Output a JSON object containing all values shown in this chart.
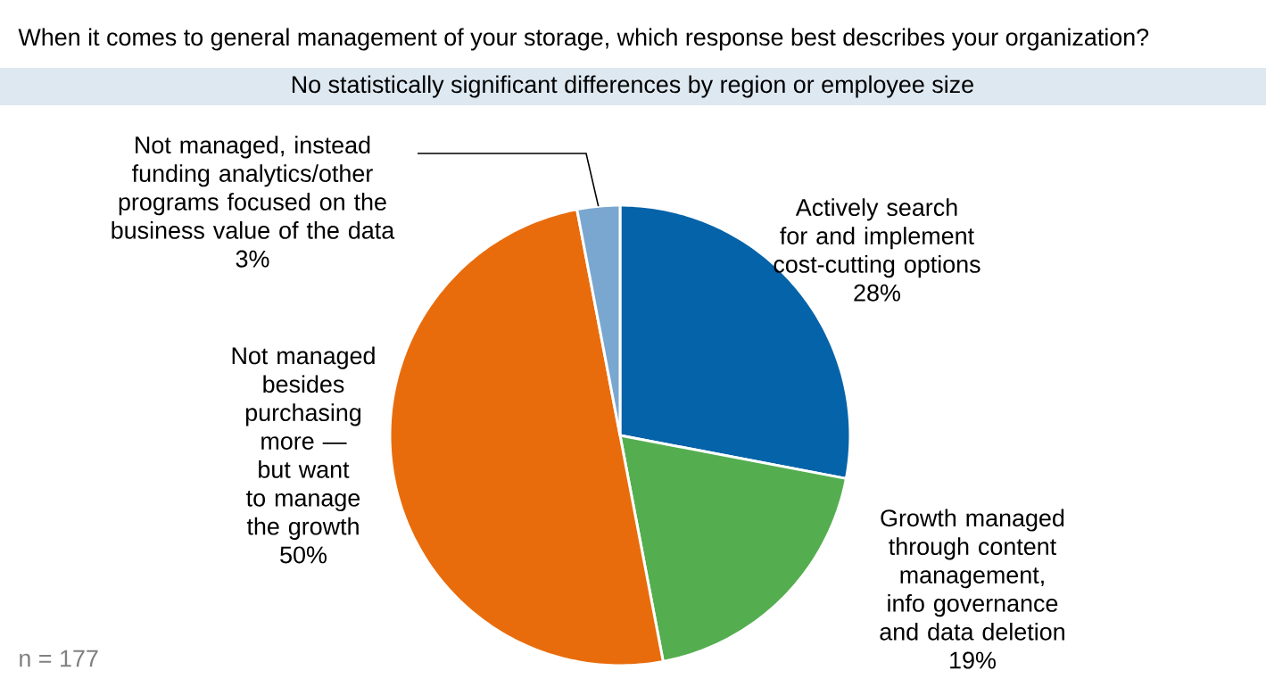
{
  "chart_data": {
    "type": "pie",
    "title": "When it comes to general management of your storage, which response best describes your organization?",
    "subtitle": "No statistically significant differences by region or employee size",
    "categories": [
      "Actively search for and implement cost-cutting options",
      "Growth managed through content management, info governance and data deletion",
      "Not managed besides purchasing more — but want to manage the growth",
      "Not managed, instead funding analytics/other programs focused on the business value of the data"
    ],
    "values": [
      28,
      19,
      50,
      3
    ],
    "colors": [
      "#0563a9",
      "#54ae4f",
      "#e96c0c",
      "#7aa7cf"
    ],
    "value_labels": [
      "28%",
      "19%",
      "50%",
      "3%"
    ],
    "annotations": [
      "n = 177"
    ]
  }
}
